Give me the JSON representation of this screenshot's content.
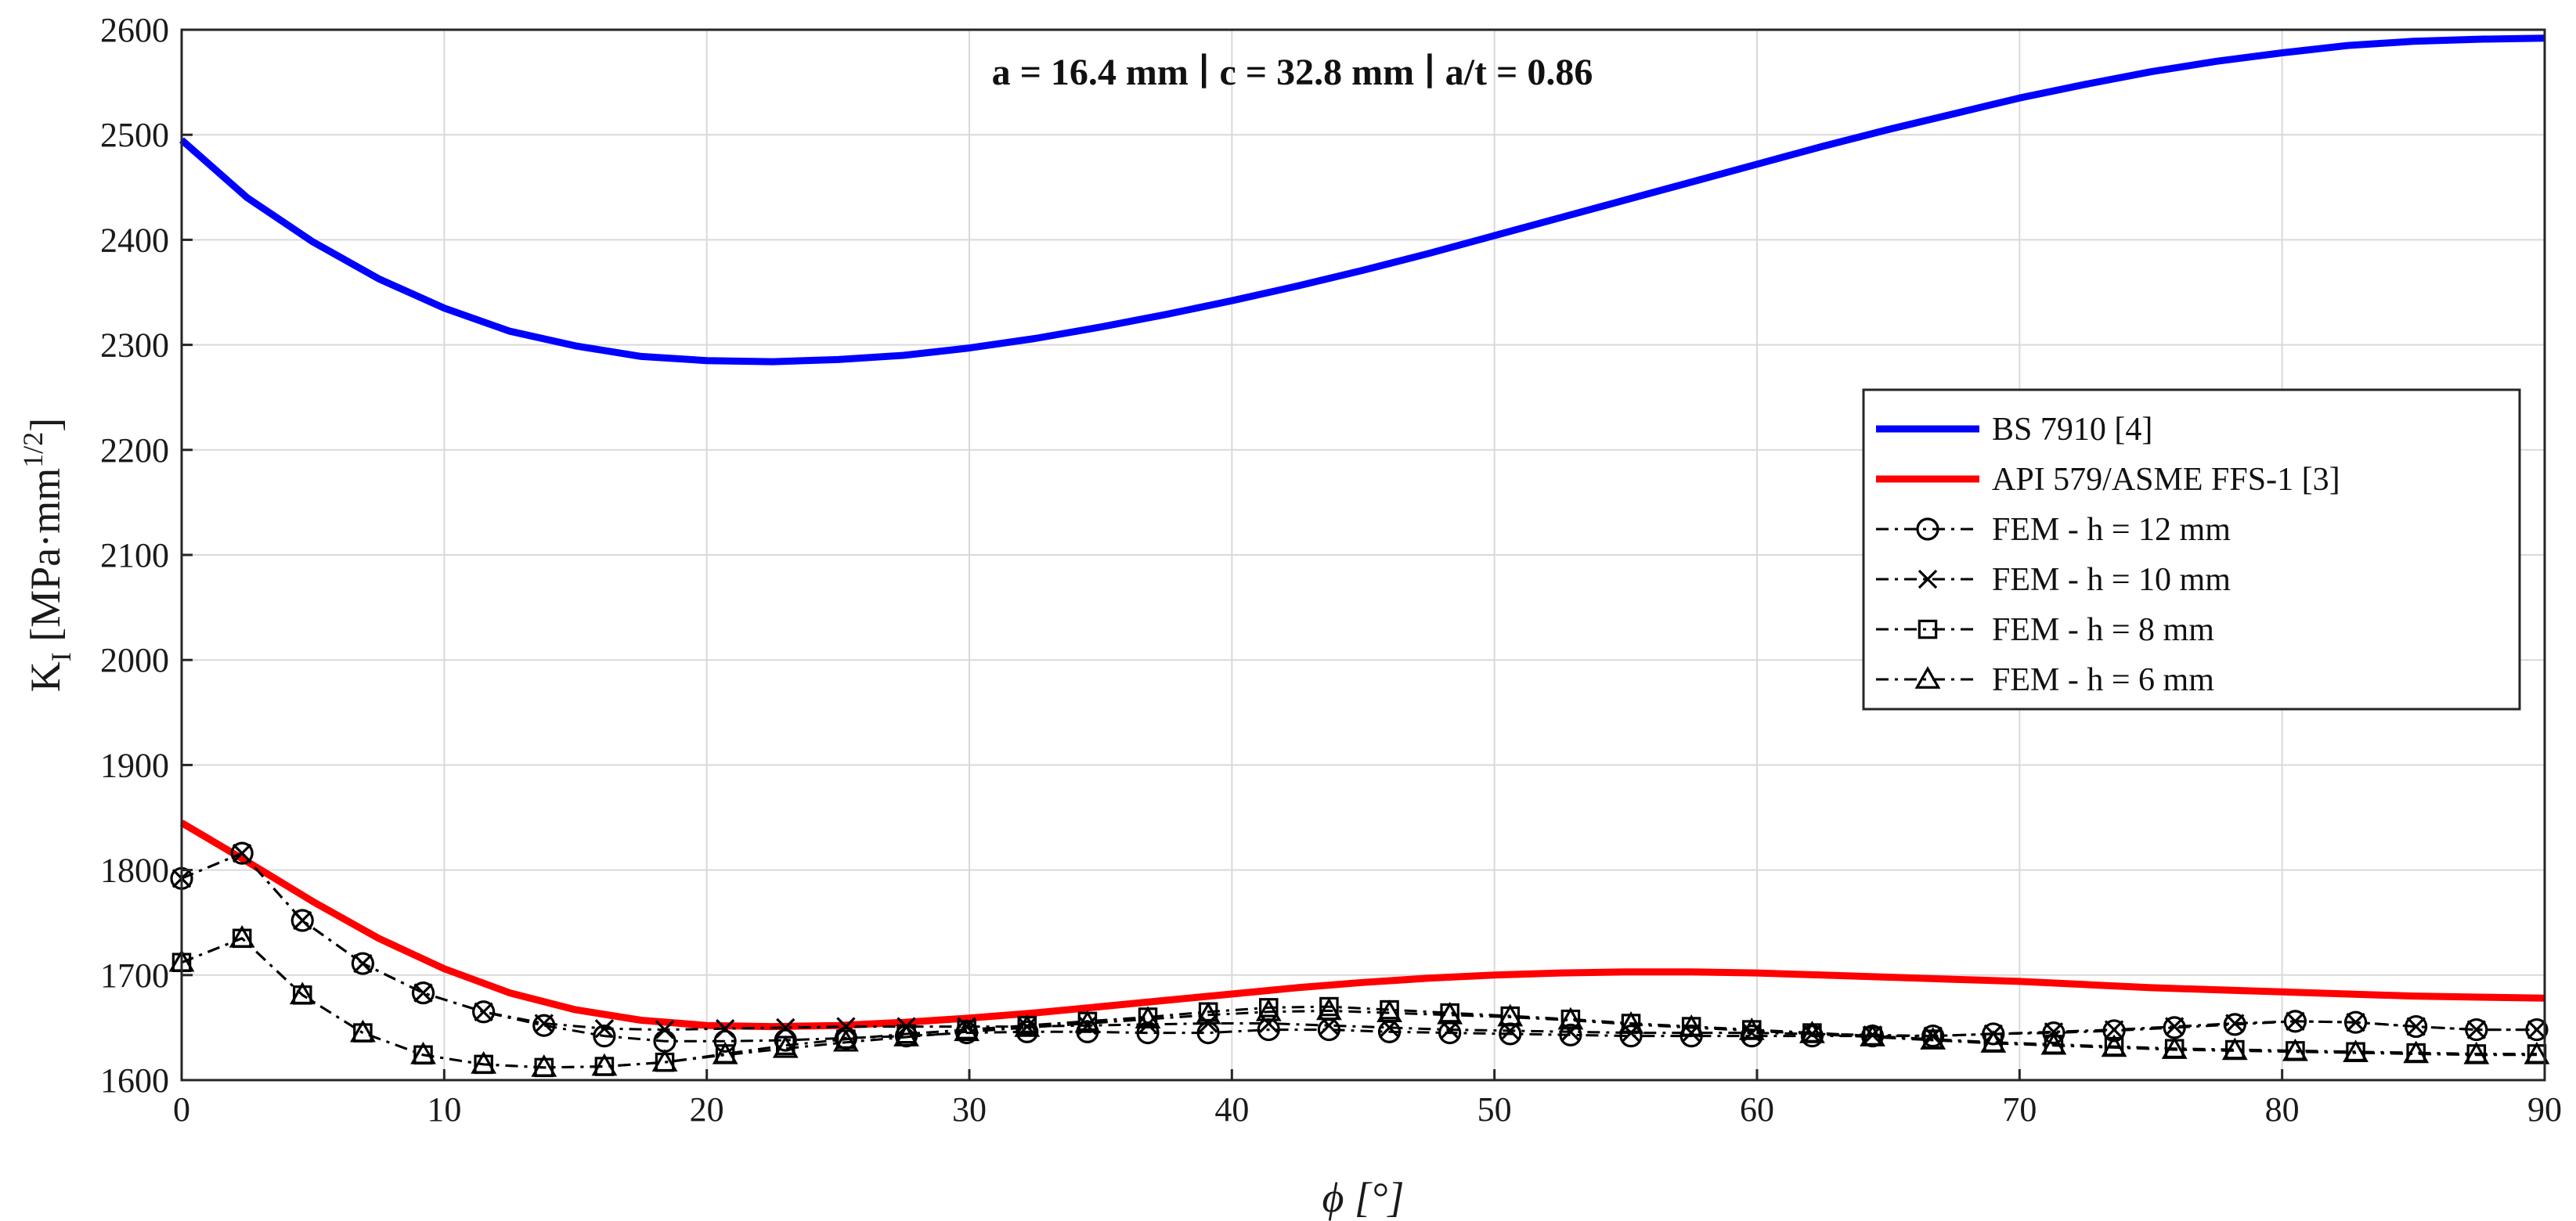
{
  "chart_data": {
    "type": "line",
    "title": "",
    "annotation": "a = 16.4 mm ∣ c = 32.8 mm ∣ a/t = 0.86",
    "xlabel": "ϕ [°]",
    "ylabel": {
      "main": "K",
      "sub": "I",
      "unit": " [MPa·mm",
      "sup": "1/2",
      "close": "]"
    },
    "xlim": [
      0,
      90
    ],
    "ylim": [
      1600,
      2600
    ],
    "xticks": [
      0,
      10,
      20,
      30,
      40,
      50,
      60,
      70,
      80,
      90
    ],
    "yticks": [
      1600,
      1700,
      1800,
      1900,
      2000,
      2100,
      2200,
      2300,
      2400,
      2500,
      2600
    ],
    "grid": true,
    "legend_position": "right",
    "series": [
      {
        "name": "BS 7910 [4]",
        "color": "#0000ff",
        "style": "solid",
        "marker": "none",
        "x": [
          0,
          2.5,
          5,
          7.5,
          10,
          12.5,
          15,
          17.5,
          20,
          22.5,
          25,
          27.5,
          30,
          32.5,
          35,
          37.5,
          40,
          42.5,
          45,
          47.5,
          50,
          52.5,
          55,
          57.5,
          60,
          62.5,
          65,
          67.5,
          70,
          72.5,
          75,
          77.5,
          80,
          82.5,
          85,
          87.5,
          90
        ],
        "y": [
          2495,
          2440,
          2398,
          2363,
          2335,
          2313,
          2299,
          2289,
          2285,
          2284,
          2286,
          2290,
          2297,
          2306,
          2317,
          2329,
          2342,
          2356,
          2371,
          2387,
          2404,
          2421,
          2438,
          2455,
          2472,
          2489,
          2505,
          2520,
          2535,
          2548,
          2560,
          2570,
          2578,
          2585,
          2589,
          2591,
          2592
        ]
      },
      {
        "name": "API 579/ASME FFS-1 [3]",
        "color": "#ff0000",
        "style": "solid",
        "marker": "none",
        "x": [
          0,
          2.5,
          5,
          7.5,
          10,
          12.5,
          15,
          17.5,
          20,
          22.5,
          25,
          27.5,
          30,
          32.5,
          35,
          37.5,
          40,
          42.5,
          45,
          47.5,
          50,
          52.5,
          55,
          57.5,
          60,
          62.5,
          65,
          67.5,
          70,
          72.5,
          75,
          77.5,
          80,
          82.5,
          85,
          87.5,
          90
        ],
        "y": [
          1845,
          1808,
          1770,
          1735,
          1706,
          1683,
          1667,
          1657,
          1652,
          1651,
          1652,
          1655,
          1659,
          1664,
          1670,
          1676,
          1682,
          1688,
          1693,
          1697,
          1700,
          1702,
          1703,
          1703,
          1702,
          1700,
          1698,
          1696,
          1694,
          1691,
          1688,
          1686,
          1684,
          1682,
          1680,
          1679,
          1678
        ]
      },
      {
        "name": "FEM - h = 12 mm",
        "color": "#000000",
        "style": "dashdot",
        "marker": "circle",
        "x": [
          0,
          2.3,
          4.6,
          6.9,
          9.2,
          11.5,
          13.8,
          16.1,
          18.4,
          20.7,
          23.0,
          25.3,
          27.6,
          29.9,
          32.2,
          34.5,
          36.8,
          39.1,
          41.4,
          43.7,
          46.0,
          48.3,
          50.6,
          52.9,
          55.2,
          57.5,
          59.8,
          62.1,
          64.4,
          66.7,
          69.0,
          71.3,
          73.6,
          75.9,
          78.2,
          80.5,
          82.8,
          85.1,
          87.4,
          89.7
        ],
        "y": [
          1792,
          1816,
          1752,
          1711,
          1683,
          1665,
          1652,
          1642,
          1637,
          1637,
          1638,
          1640,
          1642,
          1645,
          1646,
          1646,
          1645,
          1645,
          1648,
          1648,
          1646,
          1645,
          1644,
          1643,
          1642,
          1642,
          1642,
          1642,
          1642,
          1642,
          1644,
          1645,
          1647,
          1650,
          1653,
          1656,
          1655,
          1651,
          1648,
          1648
        ]
      },
      {
        "name": "FEM - h = 10 mm",
        "color": "#000000",
        "style": "dashdot",
        "marker": "x",
        "x": [
          0,
          2.3,
          4.6,
          6.9,
          9.2,
          11.5,
          13.8,
          16.1,
          18.4,
          20.7,
          23.0,
          25.3,
          27.6,
          29.9,
          32.2,
          34.5,
          36.8,
          39.1,
          41.4,
          43.7,
          46.0,
          48.3,
          50.6,
          52.9,
          55.2,
          57.5,
          59.8,
          62.1,
          64.4,
          66.7,
          69.0,
          71.3,
          73.6,
          75.9,
          78.2,
          80.5,
          82.8,
          85.1,
          87.4,
          89.7
        ],
        "y": [
          1792,
          1816,
          1752,
          1711,
          1683,
          1665,
          1654,
          1649,
          1648,
          1649,
          1650,
          1651,
          1651,
          1651,
          1651,
          1652,
          1653,
          1654,
          1654,
          1652,
          1650,
          1648,
          1647,
          1646,
          1645,
          1645,
          1645,
          1644,
          1643,
          1642,
          1644,
          1646,
          1648,
          1651,
          1654,
          1656,
          1655,
          1651,
          1648,
          1648
        ]
      },
      {
        "name": "FEM - h = 8 mm",
        "color": "#000000",
        "style": "dashdot",
        "marker": "square",
        "x": [
          0,
          2.3,
          4.6,
          6.9,
          9.2,
          11.5,
          13.8,
          16.1,
          18.4,
          20.7,
          23.0,
          25.3,
          27.6,
          29.9,
          32.2,
          34.5,
          36.8,
          39.1,
          41.4,
          43.7,
          46.0,
          48.3,
          50.6,
          52.9,
          55.2,
          57.5,
          59.8,
          62.1,
          64.4,
          66.7,
          69.0,
          71.3,
          73.6,
          75.9,
          78.2,
          80.5,
          82.8,
          85.1,
          87.4,
          89.7
        ],
        "y": [
          1712,
          1735,
          1681,
          1645,
          1624,
          1615,
          1612,
          1613,
          1617,
          1625,
          1633,
          1639,
          1644,
          1648,
          1652,
          1656,
          1660,
          1665,
          1669,
          1670,
          1667,
          1664,
          1661,
          1658,
          1654,
          1651,
          1648,
          1645,
          1642,
          1639,
          1636,
          1634,
          1632,
          1630,
          1629,
          1628,
          1627,
          1626,
          1625,
          1625
        ]
      },
      {
        "name": "FEM - h = 6 mm",
        "color": "#000000",
        "style": "dashdot",
        "marker": "triangle",
        "x": [
          0,
          2.3,
          4.6,
          6.9,
          9.2,
          11.5,
          13.8,
          16.1,
          18.4,
          20.7,
          23.0,
          25.3,
          27.6,
          29.9,
          32.2,
          34.5,
          36.8,
          39.1,
          41.4,
          43.7,
          46.0,
          48.3,
          50.6,
          52.9,
          55.2,
          57.5,
          59.8,
          62.1,
          64.4,
          66.7,
          69.0,
          71.3,
          73.6,
          75.9,
          78.2,
          80.5,
          82.8,
          85.1,
          87.4,
          89.7
        ],
        "y": [
          1712,
          1735,
          1681,
          1645,
          1624,
          1615,
          1612,
          1613,
          1617,
          1624,
          1630,
          1636,
          1641,
          1646,
          1650,
          1654,
          1658,
          1662,
          1665,
          1666,
          1664,
          1662,
          1660,
          1657,
          1653,
          1650,
          1647,
          1644,
          1641,
          1638,
          1635,
          1633,
          1631,
          1629,
          1628,
          1627,
          1626,
          1625,
          1624,
          1624
        ]
      }
    ]
  }
}
